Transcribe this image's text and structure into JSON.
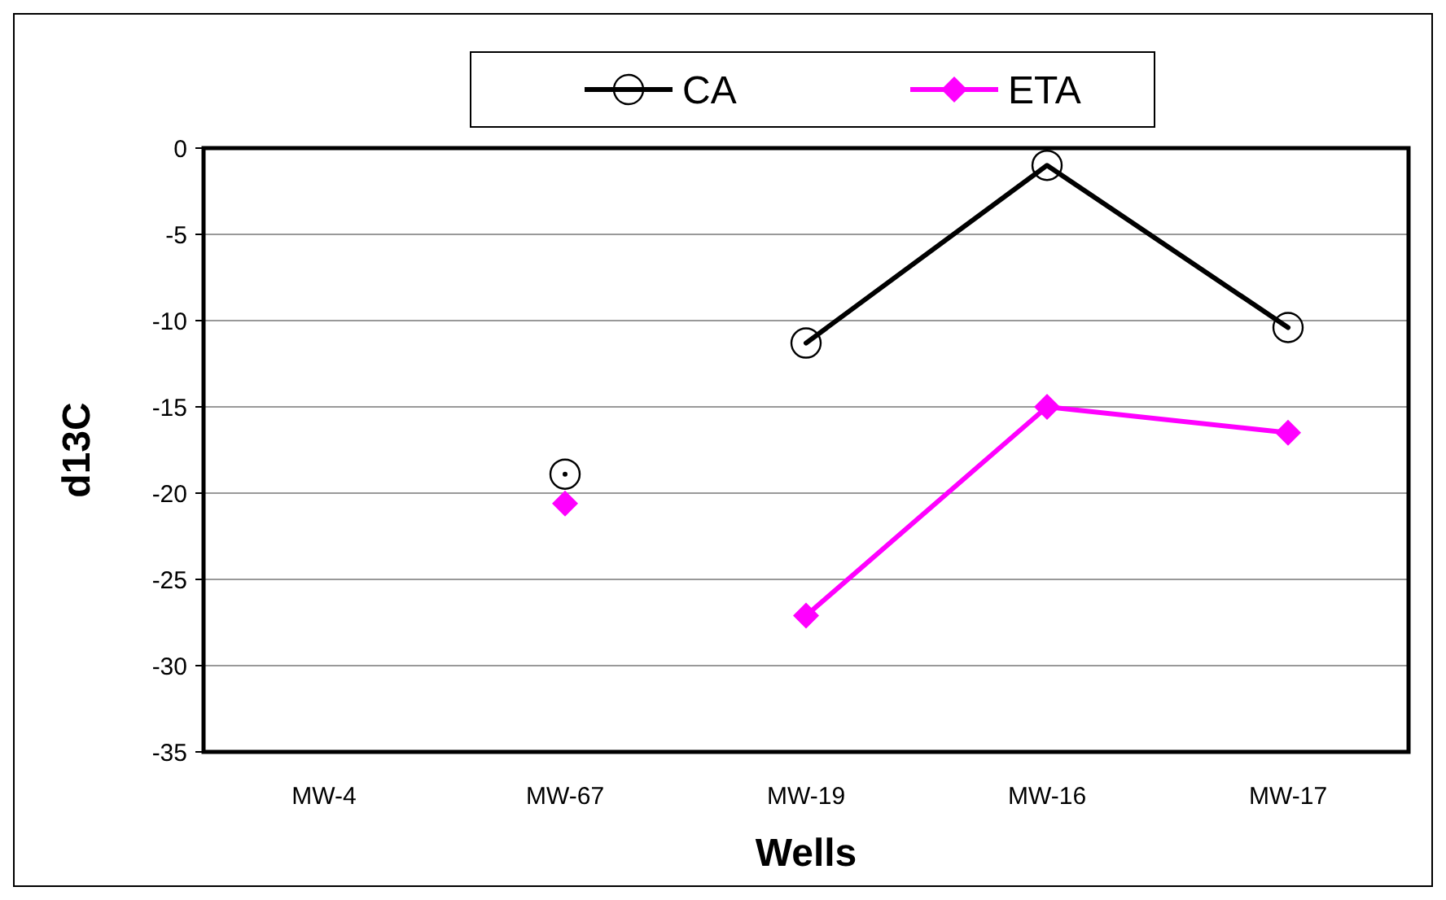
{
  "chart_data": {
    "type": "line",
    "xlabel": "Wells",
    "ylabel": "d13C",
    "categories": [
      "MW-4",
      "MW-67",
      "MW-19",
      "MW-16",
      "MW-17"
    ],
    "series": [
      {
        "name": "CA",
        "color": "#000000",
        "marker": "circle",
        "values": [
          null,
          null,
          -11.3,
          -1.0,
          -10.4
        ]
      },
      {
        "name": "ETA",
        "color": "#ff00ff",
        "marker": "diamond",
        "values": [
          null,
          null,
          -27.1,
          -15.0,
          -16.5
        ]
      },
      {
        "color": "#000000",
        "marker": "circle",
        "values": [
          null,
          -18.9,
          null,
          null,
          null
        ]
      },
      {
        "color": "#ff00ff",
        "marker": "diamond",
        "values": [
          null,
          -20.6,
          null,
          null,
          null
        ]
      }
    ],
    "ylim": [
      -35,
      0
    ],
    "yticks": [
      -35,
      -30,
      -25,
      -20,
      -15,
      -10,
      -5,
      0
    ],
    "grid": "y",
    "legend": "top"
  }
}
